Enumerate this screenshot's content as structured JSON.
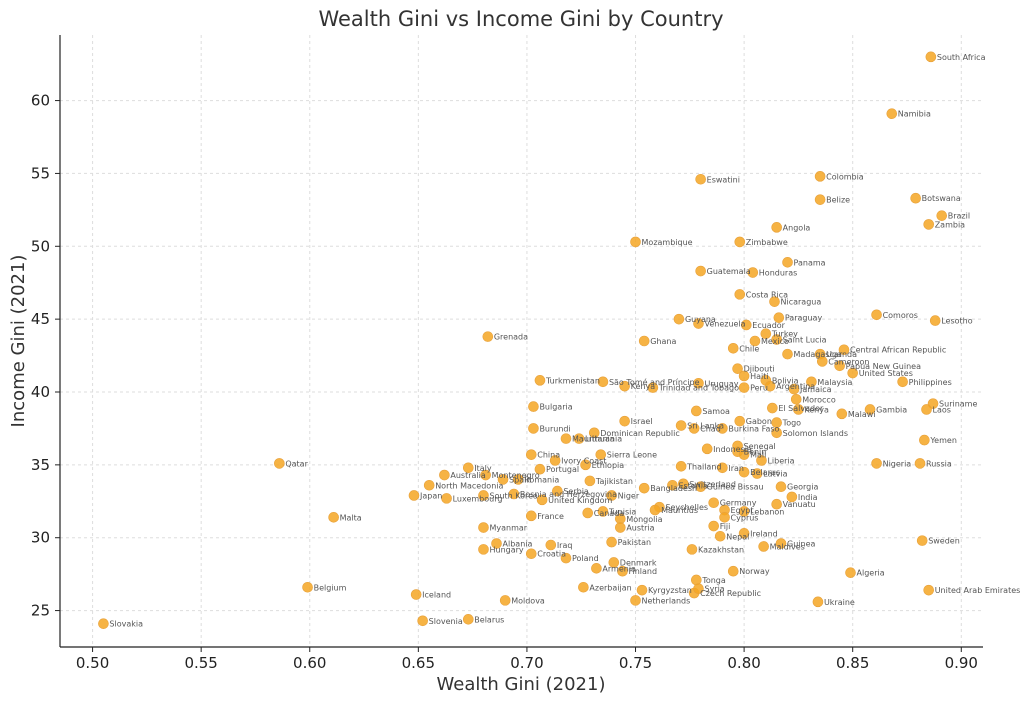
{
  "chart_data": {
    "type": "scatter",
    "title": "Wealth Gini vs Income Gini by Country",
    "xlabel": "Wealth Gini (2021)",
    "ylabel": "Income Gini (2021)",
    "xlim": [
      0.485,
      0.91
    ],
    "ylim": [
      22.5,
      64.5
    ],
    "xticks": [
      0.5,
      0.55,
      0.6,
      0.65,
      0.7,
      0.75,
      0.8,
      0.85,
      0.9
    ],
    "xtick_labels": [
      "0.50",
      "0.55",
      "0.60",
      "0.65",
      "0.70",
      "0.75",
      "0.80",
      "0.85",
      "0.90"
    ],
    "yticks": [
      25,
      30,
      35,
      40,
      45,
      50,
      55,
      60
    ],
    "ytick_labels": [
      "25",
      "30",
      "35",
      "40",
      "45",
      "50",
      "55",
      "60"
    ],
    "grid": true,
    "color": "#f5a623",
    "points": [
      {
        "label": "South Africa",
        "x": 0.886,
        "y": 63.0
      },
      {
        "label": "Namibia",
        "x": 0.868,
        "y": 59.1
      },
      {
        "label": "Colombia",
        "x": 0.835,
        "y": 54.8
      },
      {
        "label": "Eswatini",
        "x": 0.78,
        "y": 54.6
      },
      {
        "label": "Botswana",
        "x": 0.879,
        "y": 53.3
      },
      {
        "label": "Belize",
        "x": 0.835,
        "y": 53.2
      },
      {
        "label": "Brazil",
        "x": 0.891,
        "y": 52.1
      },
      {
        "label": "Zambia",
        "x": 0.885,
        "y": 51.5
      },
      {
        "label": "Angola",
        "x": 0.815,
        "y": 51.3
      },
      {
        "label": "Mozambique",
        "x": 0.75,
        "y": 50.3
      },
      {
        "label": "Zimbabwe",
        "x": 0.798,
        "y": 50.3
      },
      {
        "label": "Panama",
        "x": 0.82,
        "y": 48.9
      },
      {
        "label": "Guatemala",
        "x": 0.78,
        "y": 48.3
      },
      {
        "label": "Honduras",
        "x": 0.804,
        "y": 48.2
      },
      {
        "label": "Costa Rica",
        "x": 0.798,
        "y": 46.7
      },
      {
        "label": "Nicaragua",
        "x": 0.814,
        "y": 46.2
      },
      {
        "label": "Comoros",
        "x": 0.861,
        "y": 45.3
      },
      {
        "label": "Lesotho",
        "x": 0.888,
        "y": 44.9
      },
      {
        "label": "Paraguay",
        "x": 0.816,
        "y": 45.1
      },
      {
        "label": "Guyana",
        "x": 0.77,
        "y": 45.0
      },
      {
        "label": "Venezuela",
        "x": 0.779,
        "y": 44.7
      },
      {
        "label": "Ecuador",
        "x": 0.801,
        "y": 44.6
      },
      {
        "label": "Turkey",
        "x": 0.81,
        "y": 44.0
      },
      {
        "label": "Grenada",
        "x": 0.682,
        "y": 43.8
      },
      {
        "label": "Mexico",
        "x": 0.805,
        "y": 43.5
      },
      {
        "label": "Saint Lucia",
        "x": 0.815,
        "y": 43.6
      },
      {
        "label": "Ghana",
        "x": 0.754,
        "y": 43.5
      },
      {
        "label": "Chile",
        "x": 0.795,
        "y": 43.0
      },
      {
        "label": "Central African Republic",
        "x": 0.846,
        "y": 42.9
      },
      {
        "label": "Madagascar",
        "x": 0.82,
        "y": 42.6
      },
      {
        "label": "Uganda",
        "x": 0.835,
        "y": 42.6
      },
      {
        "label": "Cameroon",
        "x": 0.836,
        "y": 42.1
      },
      {
        "label": "Papua New Guinea",
        "x": 0.844,
        "y": 41.8
      },
      {
        "label": "Djibouti",
        "x": 0.797,
        "y": 41.6
      },
      {
        "label": "United States",
        "x": 0.85,
        "y": 41.3
      },
      {
        "label": "Haiti",
        "x": 0.8,
        "y": 41.1
      },
      {
        "label": "Turkmenistan",
        "x": 0.706,
        "y": 40.8
      },
      {
        "label": "São Tomé and Príncipe",
        "x": 0.735,
        "y": 40.7
      },
      {
        "label": "Uruguay",
        "x": 0.779,
        "y": 40.6
      },
      {
        "label": "Bolivia",
        "x": 0.81,
        "y": 40.8
      },
      {
        "label": "Malaysia",
        "x": 0.831,
        "y": 40.7
      },
      {
        "label": "Philippines",
        "x": 0.873,
        "y": 40.7
      },
      {
        "label": "Kenya",
        "x": 0.745,
        "y": 40.4
      },
      {
        "label": "Trinidad and Tobago",
        "x": 0.758,
        "y": 40.3
      },
      {
        "label": "Peru",
        "x": 0.8,
        "y": 40.3
      },
      {
        "label": "Argentina",
        "x": 0.812,
        "y": 40.4
      },
      {
        "label": "Jamaica",
        "x": 0.823,
        "y": 40.2
      },
      {
        "label": "Morocco",
        "x": 0.824,
        "y": 39.5
      },
      {
        "label": "Suriname",
        "x": 0.887,
        "y": 39.2
      },
      {
        "label": "Bulgaria",
        "x": 0.703,
        "y": 39.0
      },
      {
        "label": "Laos",
        "x": 0.884,
        "y": 38.8
      },
      {
        "label": "Samoa",
        "x": 0.778,
        "y": 38.7
      },
      {
        "label": "El Salvador",
        "x": 0.813,
        "y": 38.9
      },
      {
        "label": "Kenya",
        "x": 0.825,
        "y": 38.8
      },
      {
        "label": "Gambia",
        "x": 0.858,
        "y": 38.8
      },
      {
        "label": "Malawi",
        "x": 0.845,
        "y": 38.5
      },
      {
        "label": "Israel",
        "x": 0.745,
        "y": 38.0
      },
      {
        "label": "Gabon",
        "x": 0.798,
        "y": 38.0
      },
      {
        "label": "Togo",
        "x": 0.815,
        "y": 37.9
      },
      {
        "label": "Sri Lanka",
        "x": 0.771,
        "y": 37.7
      },
      {
        "label": "Chad",
        "x": 0.777,
        "y": 37.5
      },
      {
        "label": "Burkina Faso",
        "x": 0.79,
        "y": 37.5
      },
      {
        "label": "Burundi",
        "x": 0.703,
        "y": 37.5
      },
      {
        "label": "Solomon Islands",
        "x": 0.815,
        "y": 37.2
      },
      {
        "label": "Dominican Republic",
        "x": 0.731,
        "y": 37.2
      },
      {
        "label": "Mauritania",
        "x": 0.718,
        "y": 36.8
      },
      {
        "label": "Lithuania",
        "x": 0.724,
        "y": 36.8
      },
      {
        "label": "Yemen",
        "x": 0.883,
        "y": 36.7
      },
      {
        "label": "Senegal",
        "x": 0.797,
        "y": 36.3
      },
      {
        "label": "Indonesia",
        "x": 0.783,
        "y": 36.1
      },
      {
        "label": "Benin",
        "x": 0.797,
        "y": 35.9
      },
      {
        "label": "Mali",
        "x": 0.8,
        "y": 35.7
      },
      {
        "label": "China",
        "x": 0.702,
        "y": 35.7
      },
      {
        "label": "Sierra Leone",
        "x": 0.734,
        "y": 35.7
      },
      {
        "label": "Liberia",
        "x": 0.808,
        "y": 35.3
      },
      {
        "label": "Ivory Coast",
        "x": 0.713,
        "y": 35.3
      },
      {
        "label": "Ethiopia",
        "x": 0.727,
        "y": 35.0
      },
      {
        "label": "Qatar",
        "x": 0.586,
        "y": 35.1
      },
      {
        "label": "Nigeria",
        "x": 0.861,
        "y": 35.1
      },
      {
        "label": "Russia",
        "x": 0.881,
        "y": 35.1
      },
      {
        "label": "Italy",
        "x": 0.673,
        "y": 34.8
      },
      {
        "label": "Portugal",
        "x": 0.706,
        "y": 34.7
      },
      {
        "label": "Thailand",
        "x": 0.771,
        "y": 34.9
      },
      {
        "label": "Iran",
        "x": 0.79,
        "y": 34.8
      },
      {
        "label": "Belarus",
        "x": 0.8,
        "y": 34.5
      },
      {
        "label": "Latvia",
        "x": 0.806,
        "y": 34.4
      },
      {
        "label": "Australia",
        "x": 0.662,
        "y": 34.3
      },
      {
        "label": "Montenegro",
        "x": 0.681,
        "y": 34.3
      },
      {
        "label": "Spain",
        "x": 0.689,
        "y": 34.0
      },
      {
        "label": "Romania",
        "x": 0.696,
        "y": 34.0
      },
      {
        "label": "Tajikistan",
        "x": 0.729,
        "y": 33.9
      },
      {
        "label": "Guinea Bissau",
        "x": 0.78,
        "y": 33.5
      },
      {
        "label": "Switzerland",
        "x": 0.772,
        "y": 33.7
      },
      {
        "label": "Georgia",
        "x": 0.817,
        "y": 33.5
      },
      {
        "label": "North Macedonia",
        "x": 0.655,
        "y": 33.6
      },
      {
        "label": "Bangladesh",
        "x": 0.754,
        "y": 33.4
      },
      {
        "label": "Estonia",
        "x": 0.767,
        "y": 33.6
      },
      {
        "label": "Serbia",
        "x": 0.714,
        "y": 33.2
      },
      {
        "label": "Bosnia and Herzegovina",
        "x": 0.694,
        "y": 33.0
      },
      {
        "label": "Niger",
        "x": 0.739,
        "y": 32.9
      },
      {
        "label": "India",
        "x": 0.822,
        "y": 32.8
      },
      {
        "label": "Japan",
        "x": 0.648,
        "y": 32.9
      },
      {
        "label": "Luxembourg",
        "x": 0.663,
        "y": 32.7
      },
      {
        "label": "South Korea",
        "x": 0.68,
        "y": 32.9
      },
      {
        "label": "United Kingdom",
        "x": 0.707,
        "y": 32.6
      },
      {
        "label": "Germany",
        "x": 0.786,
        "y": 32.4
      },
      {
        "label": "Vanuatu",
        "x": 0.815,
        "y": 32.3
      },
      {
        "label": "Seychelles",
        "x": 0.761,
        "y": 32.1
      },
      {
        "label": "Mauritius",
        "x": 0.759,
        "y": 31.9
      },
      {
        "label": "Egypt",
        "x": 0.791,
        "y": 31.9
      },
      {
        "label": "Lebanon",
        "x": 0.8,
        "y": 31.8
      },
      {
        "label": "Canada",
        "x": 0.728,
        "y": 31.7
      },
      {
        "label": "Tunisia",
        "x": 0.735,
        "y": 31.8
      },
      {
        "label": "Malta",
        "x": 0.611,
        "y": 31.4
      },
      {
        "label": "France",
        "x": 0.702,
        "y": 31.5
      },
      {
        "label": "Mongolia",
        "x": 0.743,
        "y": 31.3
      },
      {
        "label": "Cyprus",
        "x": 0.791,
        "y": 31.4
      },
      {
        "label": "Austria",
        "x": 0.743,
        "y": 30.7
      },
      {
        "label": "Myanmar",
        "x": 0.68,
        "y": 30.7
      },
      {
        "label": "Fiji",
        "x": 0.786,
        "y": 30.8
      },
      {
        "label": "Ireland",
        "x": 0.8,
        "y": 30.3
      },
      {
        "label": "Nepal",
        "x": 0.789,
        "y": 30.1
      },
      {
        "label": "Sweden",
        "x": 0.882,
        "y": 29.8
      },
      {
        "label": "Pakistan",
        "x": 0.739,
        "y": 29.7
      },
      {
        "label": "Albania",
        "x": 0.686,
        "y": 29.6
      },
      {
        "label": "Guinea",
        "x": 0.817,
        "y": 29.6
      },
      {
        "label": "Iraq",
        "x": 0.711,
        "y": 29.5
      },
      {
        "label": "Maldives",
        "x": 0.809,
        "y": 29.4
      },
      {
        "label": "Hungary",
        "x": 0.68,
        "y": 29.2
      },
      {
        "label": "Kazakhstan",
        "x": 0.776,
        "y": 29.2
      },
      {
        "label": "Croatia",
        "x": 0.702,
        "y": 28.9
      },
      {
        "label": "Poland",
        "x": 0.718,
        "y": 28.6
      },
      {
        "label": "Denmark",
        "x": 0.74,
        "y": 28.3
      },
      {
        "label": "Armenia",
        "x": 0.732,
        "y": 27.9
      },
      {
        "label": "Finland",
        "x": 0.744,
        "y": 27.7
      },
      {
        "label": "Norway",
        "x": 0.795,
        "y": 27.7
      },
      {
        "label": "Algeria",
        "x": 0.849,
        "y": 27.6
      },
      {
        "label": "Tonga",
        "x": 0.778,
        "y": 27.1
      },
      {
        "label": "Belgium",
        "x": 0.599,
        "y": 26.6
      },
      {
        "label": "Azerbaijan",
        "x": 0.726,
        "y": 26.6
      },
      {
        "label": "Kyrgyzstan",
        "x": 0.753,
        "y": 26.4
      },
      {
        "label": "Czech Republic",
        "x": 0.777,
        "y": 26.2
      },
      {
        "label": "Syria",
        "x": 0.779,
        "y": 26.5
      },
      {
        "label": "United Arab Emirates",
        "x": 0.885,
        "y": 26.4
      },
      {
        "label": "Iceland",
        "x": 0.649,
        "y": 26.1
      },
      {
        "label": "Moldova",
        "x": 0.69,
        "y": 25.7
      },
      {
        "label": "Netherlands",
        "x": 0.75,
        "y": 25.7
      },
      {
        "label": "Ukraine",
        "x": 0.834,
        "y": 25.6
      },
      {
        "label": "Belarus",
        "x": 0.673,
        "y": 24.4
      },
      {
        "label": "Slovenia",
        "x": 0.652,
        "y": 24.3
      },
      {
        "label": "Slovakia",
        "x": 0.505,
        "y": 24.1
      }
    ]
  }
}
